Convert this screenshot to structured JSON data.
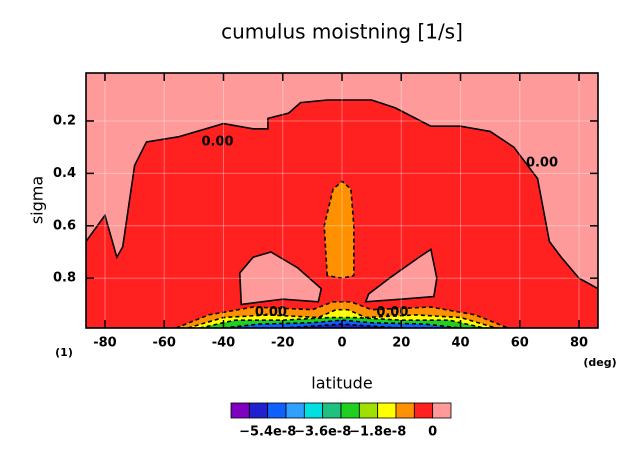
{
  "chart_data": {
    "type": "contour",
    "title": "cumulus moistning [1/s]",
    "xlabel": "latitude",
    "ylabel": "sigma",
    "xunit": "(deg)",
    "yunit": "(1)",
    "xlim": [
      -86.4,
      86.4
    ],
    "ylim": [
      0.99,
      0.017
    ],
    "xticks": [
      -80,
      -60,
      -40,
      -20,
      0,
      20,
      40,
      60,
      80
    ],
    "yticks": [
      0.2,
      0.4,
      0.6,
      0.8
    ],
    "grid": true,
    "background": "#ff9a9a",
    "regions": [
      {
        "color": "#ff2020",
        "outline": "solid",
        "points": [
          [
            -86.4,
            0.99
          ],
          [
            -86.4,
            0.66
          ],
          [
            -80,
            0.56
          ],
          [
            -76,
            0.72
          ],
          [
            -74,
            0.68
          ],
          [
            -70,
            0.37
          ],
          [
            -66,
            0.28
          ],
          [
            -55,
            0.26
          ],
          [
            -40,
            0.21
          ],
          [
            -30,
            0.23
          ],
          [
            -25,
            0.23
          ],
          [
            -25,
            0.19
          ],
          [
            -18,
            0.17
          ],
          [
            -14,
            0.13
          ],
          [
            -5,
            0.12
          ],
          [
            10,
            0.12
          ],
          [
            18,
            0.15
          ],
          [
            30,
            0.22
          ],
          [
            40,
            0.22
          ],
          [
            50,
            0.24
          ],
          [
            58,
            0.3
          ],
          [
            66,
            0.42
          ],
          [
            70,
            0.66
          ],
          [
            74,
            0.72
          ],
          [
            80,
            0.8
          ],
          [
            86.4,
            0.84
          ],
          [
            86.4,
            0.99
          ]
        ]
      },
      {
        "color": "#ff9000",
        "outline": "dashed",
        "points": [
          [
            -5,
            0.79
          ],
          [
            -6,
            0.6
          ],
          [
            -3,
            0.46
          ],
          [
            0,
            0.43
          ],
          [
            3,
            0.46
          ],
          [
            4,
            0.6
          ],
          [
            4,
            0.79
          ],
          [
            0,
            0.8
          ]
        ]
      },
      {
        "color": "#ff9a9a",
        "outline": "solid",
        "points": [
          [
            -34,
            0.9
          ],
          [
            -34.5,
            0.78
          ],
          [
            -30,
            0.72
          ],
          [
            -24,
            0.7
          ],
          [
            -15,
            0.76
          ],
          [
            -7,
            0.84
          ],
          [
            -8,
            0.89
          ],
          [
            -20,
            0.88
          ]
        ]
      },
      {
        "color": "#ff9a9a",
        "outline": "solid",
        "points": [
          [
            8,
            0.89
          ],
          [
            9,
            0.86
          ],
          [
            16,
            0.8
          ],
          [
            26,
            0.72
          ],
          [
            30,
            0.69
          ],
          [
            32,
            0.8
          ],
          [
            31,
            0.87
          ],
          [
            20,
            0.88
          ]
        ]
      },
      {
        "color": "#ff9000",
        "outline": "dashed",
        "points": [
          [
            -56,
            0.99
          ],
          [
            -45,
            0.94
          ],
          [
            -30,
            0.91
          ],
          [
            -10,
            0.92
          ],
          [
            -3,
            0.89
          ],
          [
            3,
            0.89
          ],
          [
            10,
            0.92
          ],
          [
            30,
            0.91
          ],
          [
            45,
            0.94
          ],
          [
            56,
            0.99
          ]
        ]
      },
      {
        "color": "#ffff00",
        "outline": "dashed",
        "points": [
          [
            -52,
            0.99
          ],
          [
            -40,
            0.95
          ],
          [
            -25,
            0.94
          ],
          [
            -8,
            0.95
          ],
          [
            -2,
            0.92
          ],
          [
            2,
            0.92
          ],
          [
            8,
            0.95
          ],
          [
            25,
            0.94
          ],
          [
            40,
            0.95
          ],
          [
            52,
            0.99
          ]
        ]
      },
      {
        "color": "#20d020",
        "outline": "dashed",
        "points": [
          [
            -48,
            0.99
          ],
          [
            -36,
            0.96
          ],
          [
            -20,
            0.96
          ],
          [
            -4,
            0.95
          ],
          [
            4,
            0.95
          ],
          [
            20,
            0.96
          ],
          [
            36,
            0.96
          ],
          [
            48,
            0.99
          ]
        ]
      },
      {
        "color": "#1060ff",
        "outline": "dashed",
        "points": [
          [
            -40,
            0.99
          ],
          [
            -28,
            0.975
          ],
          [
            -10,
            0.97
          ],
          [
            0,
            0.96
          ],
          [
            10,
            0.97
          ],
          [
            28,
            0.975
          ],
          [
            40,
            0.99
          ]
        ]
      },
      {
        "color": "#2020d0",
        "outline": "dashed",
        "points": [
          [
            -20,
            0.99
          ],
          [
            -6,
            0.98
          ],
          [
            0,
            0.975
          ],
          [
            6,
            0.98
          ],
          [
            20,
            0.99
          ]
        ]
      }
    ],
    "contour_labels": [
      {
        "text": "0.00",
        "x": -42,
        "y": 0.28
      },
      {
        "text": "0.00",
        "x": -24,
        "y": 0.93
      },
      {
        "text": "0.00",
        "x": 17,
        "y": 0.93
      },
      {
        "text": "0.00",
        "x": 67.5,
        "y": 0.36
      }
    ],
    "colorbar": {
      "levels": [
        -6.6e-08,
        -6e-08,
        -5.4e-08,
        -4.8e-08,
        -4.2e-08,
        -3.6e-08,
        -3e-08,
        -2.4e-08,
        -1.8e-08,
        -1.2e-08,
        -6e-09,
        0,
        6e-09
      ],
      "colors": [
        "#8000c0",
        "#2020d0",
        "#1060ff",
        "#30a0ff",
        "#00e0e0",
        "#20c080",
        "#20d020",
        "#a0e000",
        "#ffff00",
        "#ff9000",
        "#ff2020",
        "#ff9a9a"
      ],
      "ticks": [
        {
          "value": -5.4e-08,
          "label": "−5.4e-8"
        },
        {
          "value": -3.6e-08,
          "label": "−3.6e-8"
        },
        {
          "value": -1.8e-08,
          "label": "−1.8e-8"
        },
        0
      ]
    }
  }
}
